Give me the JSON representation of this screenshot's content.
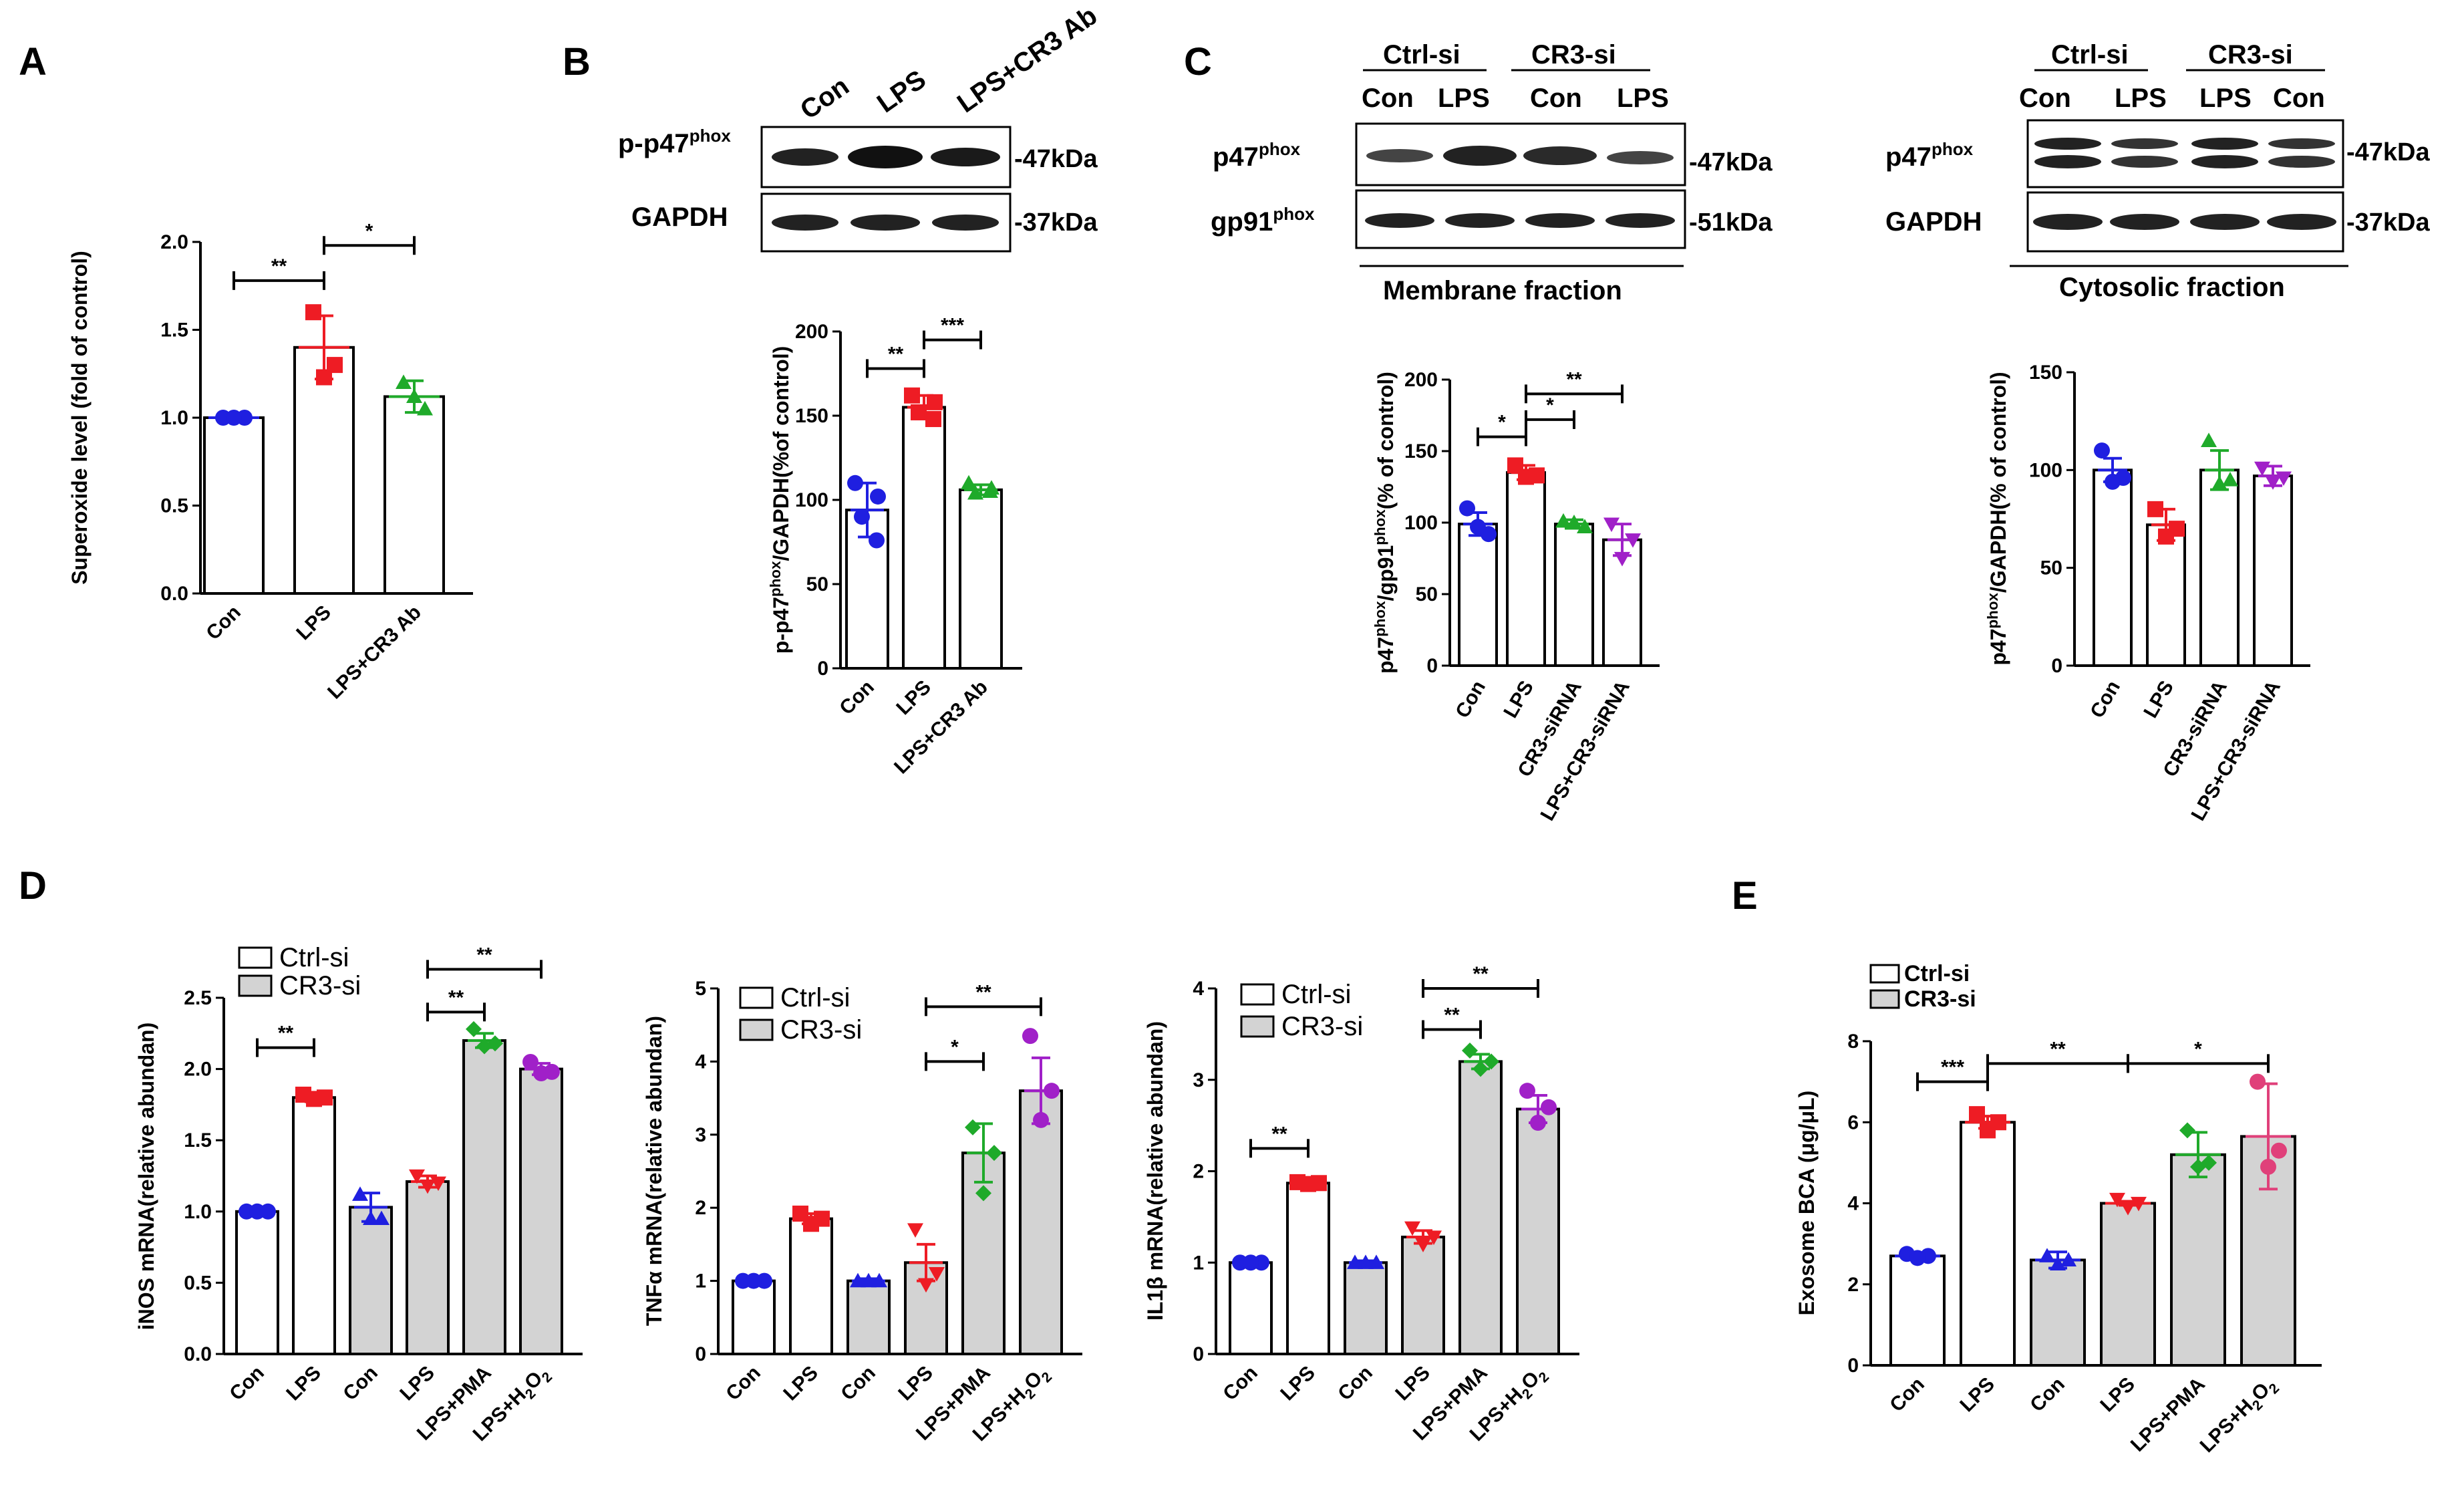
{
  "colors": {
    "blue": "#1f1fe0",
    "red": "#ee1c24",
    "green": "#1faa2a",
    "purple": "#a020c8",
    "pink": "#e0407a",
    "grayfill": "#d3d3d3"
  },
  "panel_labels": {
    "A": "A",
    "B": "B",
    "C": "C",
    "D": "D",
    "E": "E"
  },
  "blots": {
    "B": {
      "lanes": [
        "Con",
        "LPS",
        "LPS+CR3 Ab"
      ],
      "rows": [
        {
          "label": "p-p47",
          "sup": "phox",
          "kda": "-47kDa"
        },
        {
          "label": "GAPDH",
          "sup": "",
          "kda": "-37kDa"
        }
      ]
    },
    "C_membrane": {
      "groups": [
        "Ctrl-si",
        "CR3-si"
      ],
      "lanes": [
        "Con",
        "LPS",
        "Con",
        "LPS"
      ],
      "rows": [
        {
          "label": "p47",
          "sup": "phox",
          "kda": "-47kDa"
        },
        {
          "label": "gp91",
          "sup": "phox",
          "kda": "-51kDa"
        }
      ],
      "caption": "Membrane fraction"
    },
    "C_cytosol": {
      "groups": [
        "Ctrl-si",
        "CR3-si"
      ],
      "lanes": [
        "Con",
        "LPS",
        "LPS",
        "Con"
      ],
      "rows": [
        {
          "label": "p47",
          "sup": "phox",
          "kda": "-47kDa"
        },
        {
          "label": "GAPDH",
          "sup": "",
          "kda": "-37kDa"
        }
      ],
      "caption": "Cytosolic fraction"
    }
  },
  "legend_D": {
    "ctrl": "Ctrl-si",
    "cr3": "CR3-si"
  },
  "chart_data": [
    {
      "id": "A",
      "type": "bar",
      "ylabel": "Superoxide level (fold of control)",
      "ylim": [
        0,
        2.0
      ],
      "yticks": [
        "0.0",
        "0.5",
        "1.0",
        "1.5",
        "2.0"
      ],
      "categories": [
        "Con",
        "LPS",
        "LPS+CR3 Ab"
      ],
      "values": [
        1.0,
        1.4,
        1.12
      ],
      "errors": [
        0,
        0.18,
        0.09
      ],
      "fill": [
        "white",
        "white",
        "white"
      ],
      "point_colors": [
        "blue",
        "red",
        "green"
      ],
      "markers": [
        "circle",
        "square",
        "triangle"
      ],
      "points": [
        [
          1.0,
          1.0,
          1.0
        ],
        [
          1.6,
          1.3,
          1.23
        ],
        [
          1.2,
          1.05,
          1.12
        ]
      ],
      "sig": [
        {
          "from": 0,
          "to": 1,
          "label": "**",
          "y": 1.78
        },
        {
          "from": 1,
          "to": 2,
          "label": "*",
          "y": 1.98
        }
      ]
    },
    {
      "id": "B",
      "type": "bar",
      "ylabel": "p-p47phox/GAPDH(%of control)",
      "ylim": [
        0,
        200
      ],
      "yticks": [
        "0",
        "50",
        "100",
        "150",
        "200"
      ],
      "categories": [
        "Con",
        "LPS",
        "LPS+CR3 Ab"
      ],
      "values": [
        94,
        155,
        106
      ],
      "errors": [
        16,
        7,
        3
      ],
      "fill": [
        "white",
        "white",
        "white"
      ],
      "point_colors": [
        "blue",
        "red",
        "green"
      ],
      "markers": [
        "circle",
        "square",
        "triangle"
      ],
      "points": [
        [
          110,
          102,
          90,
          76
        ],
        [
          162,
          158,
          152,
          148
        ],
        [
          110,
          107,
          104,
          105
        ]
      ],
      "sig": [
        {
          "from": 0,
          "to": 1,
          "label": "**",
          "y": 178
        },
        {
          "from": 1,
          "to": 2,
          "label": "***",
          "y": 195
        }
      ]
    },
    {
      "id": "C1",
      "type": "bar",
      "ylabel": "p47phox/gp91phox(% of control)",
      "ylim": [
        0,
        200
      ],
      "yticks": [
        "0",
        "50",
        "100",
        "150",
        "200"
      ],
      "categories": [
        "Con",
        "LPS",
        "CR3-siRNA",
        "LPS+CR3-siRNA"
      ],
      "values": [
        99,
        135,
        99,
        88
      ],
      "errors": [
        8,
        5,
        3,
        11
      ],
      "fill": [
        "white",
        "white",
        "white",
        "white"
      ],
      "point_colors": [
        "blue",
        "red",
        "green",
        "purple"
      ],
      "markers": [
        "circle",
        "square",
        "triangle",
        "invtriangle"
      ],
      "points": [
        [
          110,
          92,
          97
        ],
        [
          140,
          133,
          132
        ],
        [
          101,
          97,
          100
        ],
        [
          99,
          88,
          75
        ]
      ],
      "sig": [
        {
          "from": 0,
          "to": 1,
          "label": "*",
          "y": 160
        },
        {
          "from": 1,
          "to": 2,
          "label": "*",
          "y": 172
        },
        {
          "from": 1,
          "to": 3,
          "label": "**",
          "y": 190
        }
      ]
    },
    {
      "id": "C2",
      "type": "bar",
      "ylabel": "p47phox/GAPDH(% of control)",
      "ylim": [
        0,
        150
      ],
      "yticks": [
        "0",
        "50",
        "100",
        "150"
      ],
      "categories": [
        "Con",
        "LPS",
        "CR3-siRNA",
        "LPS+CR3-siRNA"
      ],
      "values": [
        100,
        72,
        100,
        97
      ],
      "errors": [
        6,
        8,
        10,
        5
      ],
      "fill": [
        "white",
        "white",
        "white",
        "white"
      ],
      "point_colors": [
        "blue",
        "red",
        "green",
        "purple"
      ],
      "markers": [
        "circle",
        "square",
        "triangle",
        "invtriangle"
      ],
      "points": [
        [
          110,
          96,
          94
        ],
        [
          80,
          70,
          66
        ],
        [
          115,
          95,
          93
        ],
        [
          101,
          96,
          94
        ]
      ],
      "sig": []
    },
    {
      "id": "D1",
      "type": "bar",
      "ylabel": "iNOS mRNA(relative abundan)",
      "ylim": [
        0,
        2.5
      ],
      "yticks": [
        "0.0",
        "0.5",
        "1.0",
        "1.5",
        "2.0",
        "2.5"
      ],
      "categories": [
        "Con",
        "LPS",
        "Con",
        "LPS",
        "LPS+PMA",
        "LPS+H2O2"
      ],
      "values": [
        1.0,
        1.8,
        1.03,
        1.21,
        2.2,
        2.0
      ],
      "errors": [
        0,
        0.03,
        0.1,
        0.04,
        0.05,
        0.04
      ],
      "fill": [
        "white",
        "white",
        "gray",
        "gray",
        "gray",
        "gray"
      ],
      "point_colors": [
        "blue",
        "red",
        "blue",
        "red",
        "green",
        "purple"
      ],
      "markers": [
        "circle",
        "square",
        "triangle",
        "invtriangle",
        "diamond",
        "circle"
      ],
      "points": [
        [
          1.0,
          1.0,
          1.0
        ],
        [
          1.82,
          1.8,
          1.79
        ],
        [
          1.12,
          0.95,
          0.95
        ],
        [
          1.25,
          1.2,
          1.18
        ],
        [
          2.28,
          2.18,
          2.16
        ],
        [
          2.05,
          1.98,
          1.97
        ]
      ],
      "sig": [
        {
          "from": 0,
          "to": 1,
          "label": "**",
          "y": 2.15
        },
        {
          "from": 3,
          "to": 4,
          "label": "**",
          "y": 2.4
        },
        {
          "from": 3,
          "to": 5,
          "label": "**",
          "y": 2.7
        }
      ]
    },
    {
      "id": "D2",
      "type": "bar",
      "ylabel": "TNFα mRNA(relative abundan)",
      "ylim": [
        0,
        5
      ],
      "yticks": [
        "0",
        "1",
        "2",
        "3",
        "4",
        "5"
      ],
      "categories": [
        "Con",
        "LPS",
        "Con",
        "LPS",
        "LPS+PMA",
        "LPS+H2O2"
      ],
      "values": [
        1.0,
        1.85,
        1.0,
        1.25,
        2.75,
        3.6
      ],
      "errors": [
        0,
        0.07,
        0.03,
        0.25,
        0.4,
        0.45
      ],
      "fill": [
        "white",
        "white",
        "gray",
        "gray",
        "gray",
        "gray"
      ],
      "point_colors": [
        "blue",
        "red",
        "blue",
        "red",
        "green",
        "purple"
      ],
      "markers": [
        "circle",
        "square",
        "triangle",
        "invtriangle",
        "diamond",
        "circle"
      ],
      "points": [
        [
          1.0,
          1.0,
          1.0
        ],
        [
          1.92,
          1.85,
          1.78
        ],
        [
          1.0,
          1.0,
          1.0
        ],
        [
          1.7,
          1.1,
          0.95
        ],
        [
          3.1,
          2.75,
          2.2
        ],
        [
          4.35,
          3.6,
          3.2
        ]
      ],
      "sig": [
        {
          "from": 3,
          "to": 4,
          "label": "*",
          "y": 4.0
        },
        {
          "from": 3,
          "to": 5,
          "label": "**",
          "y": 4.75
        }
      ]
    },
    {
      "id": "D3",
      "type": "bar",
      "ylabel": "IL1β mRNA(relative abundan)",
      "ylim": [
        0,
        4
      ],
      "yticks": [
        "0",
        "1",
        "2",
        "3",
        "4"
      ],
      "categories": [
        "Con",
        "LPS",
        "Con",
        "LPS",
        "LPS+PMA",
        "LPS+H2O2"
      ],
      "values": [
        1.0,
        1.87,
        1.0,
        1.28,
        3.2,
        2.68
      ],
      "errors": [
        0,
        0.02,
        0.02,
        0.07,
        0.08,
        0.15
      ],
      "fill": [
        "white",
        "white",
        "gray",
        "gray",
        "gray",
        "gray"
      ],
      "point_colors": [
        "blue",
        "red",
        "blue",
        "red",
        "green",
        "purple"
      ],
      "markers": [
        "circle",
        "square",
        "triangle",
        "invtriangle",
        "diamond",
        "circle"
      ],
      "points": [
        [
          1.0,
          1.0,
          1.0
        ],
        [
          1.88,
          1.87,
          1.86
        ],
        [
          1.0,
          1.0,
          1.0
        ],
        [
          1.38,
          1.28,
          1.2
        ],
        [
          3.32,
          3.2,
          3.12
        ],
        [
          2.88,
          2.7,
          2.53
        ]
      ],
      "sig": [
        {
          "from": 0,
          "to": 1,
          "label": "**",
          "y": 2.25
        },
        {
          "from": 3,
          "to": 4,
          "label": "**",
          "y": 3.55
        },
        {
          "from": 3,
          "to": 5,
          "label": "**",
          "y": 4.0
        }
      ]
    },
    {
      "id": "E",
      "type": "bar",
      "ylabel": "Exosome BCA (μg/μL)",
      "ylim": [
        0,
        8
      ],
      "yticks": [
        "0",
        "2",
        "4",
        "6",
        "8"
      ],
      "categories": [
        "Con",
        "LPS",
        "Con",
        "LPS",
        "LPS+PMA",
        "LPS+H2O2"
      ],
      "values": [
        2.7,
        6.0,
        2.6,
        4.0,
        5.2,
        5.65
      ],
      "errors": [
        0.05,
        0.15,
        0.2,
        0.05,
        0.55,
        1.3
      ],
      "fill": [
        "white",
        "white",
        "gray",
        "gray",
        "gray",
        "gray"
      ],
      "point_colors": [
        "blue",
        "red",
        "blue",
        "red",
        "green",
        "pink"
      ],
      "markers": [
        "circle",
        "square",
        "triangle",
        "invtriangle",
        "diamond",
        "circle"
      ],
      "points": [
        [
          2.75,
          2.7,
          2.65
        ],
        [
          6.2,
          6.0,
          5.8
        ],
        [
          2.7,
          2.6,
          2.5
        ],
        [
          4.1,
          4.0,
          3.9
        ],
        [
          5.8,
          5.0,
          4.9
        ],
        [
          7.0,
          5.3,
          4.9
        ]
      ],
      "sig": [
        {
          "from": 0,
          "to": 1,
          "label": "***",
          "y": 7.0
        },
        {
          "from": 1,
          "to": 3,
          "label": "**",
          "y": 7.45
        },
        {
          "from": 3,
          "to": 5,
          "label": "*",
          "y": 7.45
        }
      ]
    }
  ]
}
